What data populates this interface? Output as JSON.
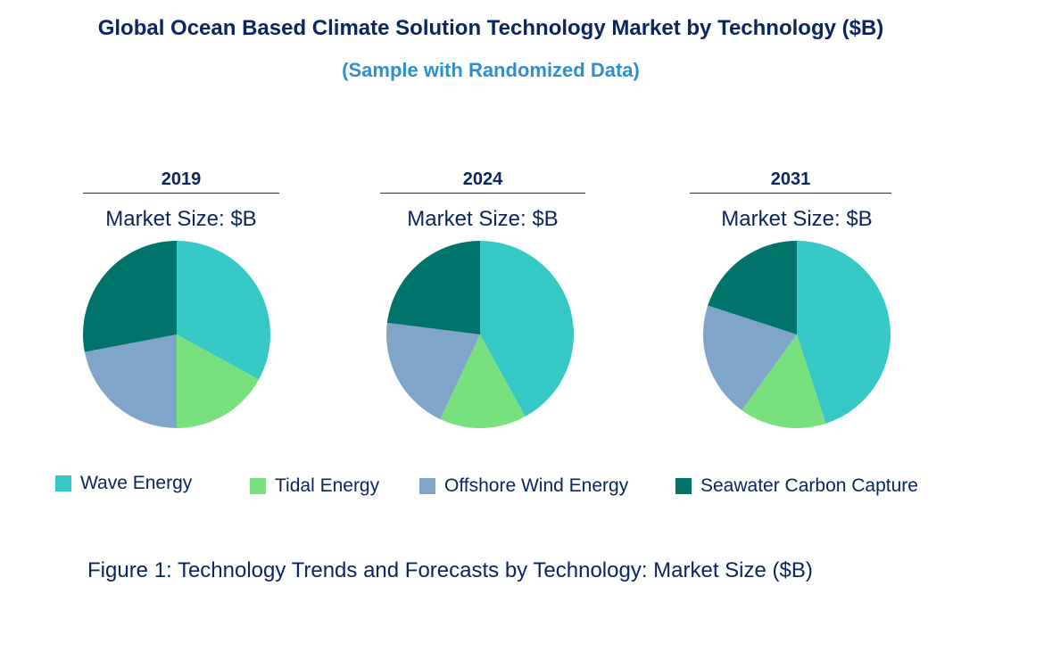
{
  "title": "Global Ocean Based Climate Solution Technology Market by Technology ($B)",
  "subtitle": "(Sample with Randomized Data)",
  "caption": "Figure 1: Technology Trends and Forecasts by Technology: Market Size ($B)",
  "chart_data": {
    "type": "pie",
    "categories": [
      "Wave Energy",
      "Tidal Energy",
      "Offshore Wind Energy",
      "Seawater Carbon Capture"
    ],
    "colors": [
      "#36C8C5",
      "#78E07D",
      "#7FA5C8",
      "#00736A"
    ],
    "legend_position": "bottom",
    "charts": [
      {
        "title": "2019",
        "subtitle": "Market Size: $B",
        "values": [
          33,
          17,
          22,
          28
        ]
      },
      {
        "title": "2024",
        "subtitle": "Market Size: $B",
        "values": [
          42,
          15,
          20,
          23
        ]
      },
      {
        "title": "2031",
        "subtitle": "Market Size: $B",
        "values": [
          45,
          15,
          20,
          20
        ]
      }
    ]
  }
}
